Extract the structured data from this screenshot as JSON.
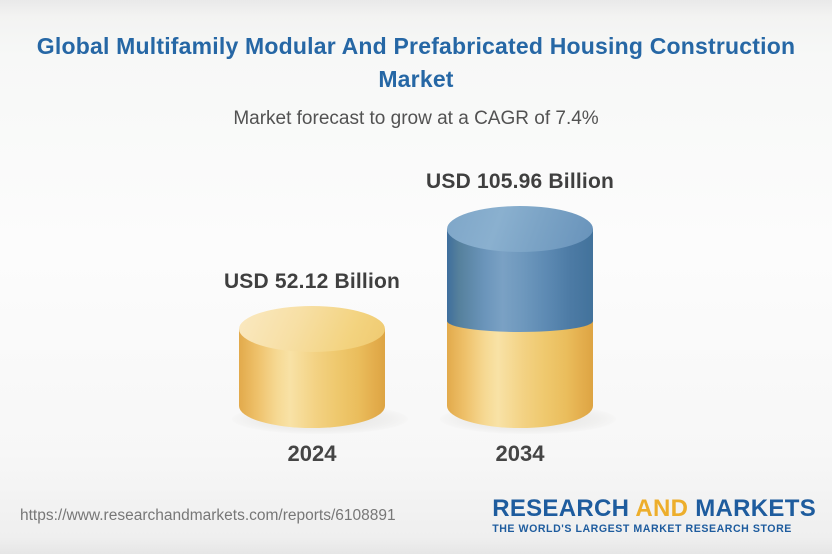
{
  "header": {
    "title": "Global Multifamily Modular And Prefabricated Housing Construction Market",
    "subtitle": "Market forecast to grow at a CAGR of 7.4%"
  },
  "chart_data": {
    "type": "bar",
    "variant": "3d-cylinder-infographic",
    "categories": [
      "2024",
      "2034"
    ],
    "values": [
      52.12,
      105.96
    ],
    "value_labels": [
      "USD 52.12 Billion",
      "USD 105.96 Billion"
    ],
    "unit": "USD Billion",
    "cagr_percent": 7.4,
    "title": "Global Multifamily Modular And Prefabricated Housing Construction Market",
    "subtitle": "Market forecast to grow at a CAGR of 7.4%",
    "xlabel": "",
    "ylabel": "",
    "legend": "none",
    "grid": false,
    "colors": {
      "bar_2024": "#F0C96F",
      "bar_2034_base": "#F0C96F",
      "bar_2034_growth": "#5D8AB3",
      "title_text": "#2667A5",
      "label_text": "#3F3F3F"
    }
  },
  "footer": {
    "url": "https://www.researchandmarkets.com/reports/6108891",
    "logo": {
      "word1": "RESEARCH",
      "word2": "AND",
      "word3": "MARKETS",
      "tagline": "THE WORLD'S LARGEST MARKET RESEARCH STORE",
      "brand_blue": "#1E5C9E",
      "brand_gold": "#EDAE2B"
    }
  }
}
